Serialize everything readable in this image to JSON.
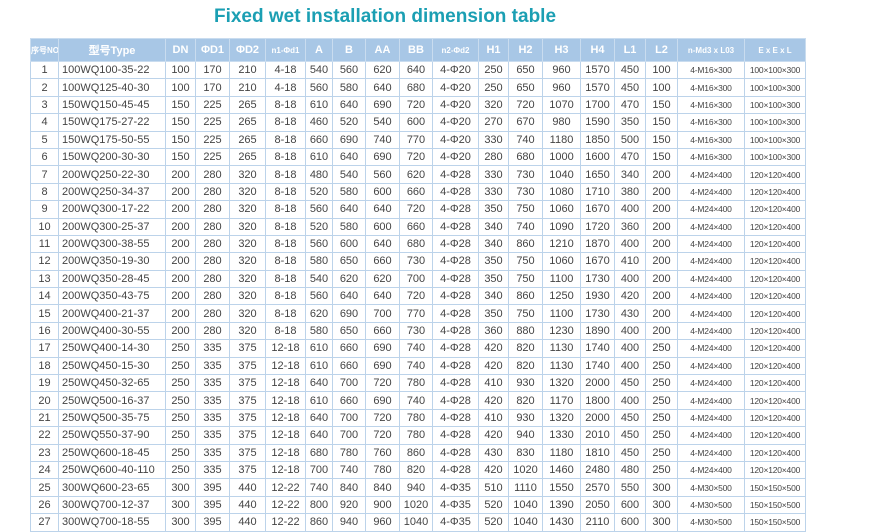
{
  "title": "Fixed wet installation dimension table",
  "table": {
    "header": [
      "序号NO",
      "型号Type",
      "DN",
      "ΦD1",
      "ΦD2",
      "n1-Φd1",
      "A",
      "B",
      "AA",
      "BB",
      "n2-Φd2",
      "H1",
      "H2",
      "H3",
      "H4",
      "L1",
      "L2",
      "n-Md3 x L03",
      "E x E x L"
    ],
    "rows": [
      [
        "1",
        "100WQ100-35-22",
        "100",
        "170",
        "210",
        "4-18",
        "540",
        "560",
        "620",
        "640",
        "4-Φ20",
        "250",
        "650",
        "960",
        "1570",
        "450",
        "100",
        "4-M16×300",
        "100×100×300"
      ],
      [
        "2",
        "100WQ125-40-30",
        "100",
        "170",
        "210",
        "4-18",
        "560",
        "580",
        "640",
        "680",
        "4-Φ20",
        "250",
        "650",
        "960",
        "1570",
        "450",
        "100",
        "4-M16×300",
        "100×100×300"
      ],
      [
        "3",
        "150WQ150-45-45",
        "150",
        "225",
        "265",
        "8-18",
        "610",
        "640",
        "690",
        "720",
        "4-Φ20",
        "320",
        "720",
        "1070",
        "1700",
        "470",
        "150",
        "4-M16×300",
        "100×100×300"
      ],
      [
        "4",
        "150WQ175-27-22",
        "150",
        "225",
        "265",
        "8-18",
        "460",
        "520",
        "540",
        "600",
        "4-Φ20",
        "270",
        "670",
        "980",
        "1590",
        "350",
        "150",
        "4-M16×300",
        "100×100×300"
      ],
      [
        "5",
        "150WQ175-50-55",
        "150",
        "225",
        "265",
        "8-18",
        "660",
        "690",
        "740",
        "770",
        "4-Φ20",
        "330",
        "740",
        "1180",
        "1850",
        "500",
        "150",
        "4-M16×300",
        "100×100×300"
      ],
      [
        "6",
        "150WQ200-30-30",
        "150",
        "225",
        "265",
        "8-18",
        "610",
        "640",
        "690",
        "720",
        "4-Φ20",
        "280",
        "680",
        "1000",
        "1600",
        "470",
        "150",
        "4-M16×300",
        "100×100×300"
      ],
      [
        "7",
        "200WQ250-22-30",
        "200",
        "280",
        "320",
        "8-18",
        "480",
        "540",
        "560",
        "620",
        "4-Φ28",
        "330",
        "730",
        "1040",
        "1650",
        "340",
        "200",
        "4-M24×400",
        "120×120×400"
      ],
      [
        "8",
        "200WQ250-34-37",
        "200",
        "280",
        "320",
        "8-18",
        "520",
        "580",
        "600",
        "660",
        "4-Φ28",
        "330",
        "730",
        "1080",
        "1710",
        "380",
        "200",
        "4-M24×400",
        "120×120×400"
      ],
      [
        "9",
        "200WQ300-17-22",
        "200",
        "280",
        "320",
        "8-18",
        "560",
        "640",
        "640",
        "720",
        "4-Φ28",
        "350",
        "750",
        "1060",
        "1670",
        "400",
        "200",
        "4-M24×400",
        "120×120×400"
      ],
      [
        "10",
        "200WQ300-25-37",
        "200",
        "280",
        "320",
        "8-18",
        "520",
        "580",
        "600",
        "660",
        "4-Φ28",
        "340",
        "740",
        "1090",
        "1720",
        "360",
        "200",
        "4-M24×400",
        "120×120×400"
      ],
      [
        "11",
        "200WQ300-38-55",
        "200",
        "280",
        "320",
        "8-18",
        "560",
        "600",
        "640",
        "680",
        "4-Φ28",
        "340",
        "860",
        "1210",
        "1870",
        "400",
        "200",
        "4-M24×400",
        "120×120×400"
      ],
      [
        "12",
        "200WQ350-19-30",
        "200",
        "280",
        "320",
        "8-18",
        "580",
        "650",
        "660",
        "730",
        "4-Φ28",
        "350",
        "750",
        "1060",
        "1670",
        "410",
        "200",
        "4-M24×400",
        "120×120×400"
      ],
      [
        "13",
        "200WQ350-28-45",
        "200",
        "280",
        "320",
        "8-18",
        "540",
        "620",
        "620",
        "700",
        "4-Φ28",
        "350",
        "750",
        "1100",
        "1730",
        "400",
        "200",
        "4-M24×400",
        "120×120×400"
      ],
      [
        "14",
        "200WQ350-43-75",
        "200",
        "280",
        "320",
        "8-18",
        "560",
        "640",
        "640",
        "720",
        "4-Φ28",
        "340",
        "860",
        "1250",
        "1930",
        "420",
        "200",
        "4-M24×400",
        "120×120×400"
      ],
      [
        "15",
        "200WQ400-21-37",
        "200",
        "280",
        "320",
        "8-18",
        "620",
        "690",
        "700",
        "770",
        "4-Φ28",
        "350",
        "750",
        "1100",
        "1730",
        "430",
        "200",
        "4-M24×400",
        "120×120×400"
      ],
      [
        "16",
        "200WQ400-30-55",
        "200",
        "280",
        "320",
        "8-18",
        "580",
        "650",
        "660",
        "730",
        "4-Φ28",
        "360",
        "880",
        "1230",
        "1890",
        "400",
        "200",
        "4-M24×400",
        "120×120×400"
      ],
      [
        "17",
        "250WQ400-14-30",
        "250",
        "335",
        "375",
        "12-18",
        "610",
        "660",
        "690",
        "740",
        "4-Φ28",
        "420",
        "820",
        "1130",
        "1740",
        "400",
        "250",
        "4-M24×400",
        "120×120×400"
      ],
      [
        "18",
        "250WQ450-15-30",
        "250",
        "335",
        "375",
        "12-18",
        "610",
        "660",
        "690",
        "740",
        "4-Φ28",
        "420",
        "820",
        "1130",
        "1740",
        "400",
        "250",
        "4-M24×400",
        "120×120×400"
      ],
      [
        "19",
        "250WQ450-32-65",
        "250",
        "335",
        "375",
        "12-18",
        "640",
        "700",
        "720",
        "780",
        "4-Φ28",
        "410",
        "930",
        "1320",
        "2000",
        "450",
        "250",
        "4-M24×400",
        "120×120×400"
      ],
      [
        "20",
        "250WQ500-16-37",
        "250",
        "335",
        "375",
        "12-18",
        "610",
        "660",
        "690",
        "740",
        "4-Φ28",
        "420",
        "820",
        "1170",
        "1800",
        "400",
        "250",
        "4-M24×400",
        "120×120×400"
      ],
      [
        "21",
        "250WQ500-35-75",
        "250",
        "335",
        "375",
        "12-18",
        "640",
        "700",
        "720",
        "780",
        "4-Φ28",
        "410",
        "930",
        "1320",
        "2000",
        "450",
        "250",
        "4-M24×400",
        "120×120×400"
      ],
      [
        "22",
        "250WQ550-37-90",
        "250",
        "335",
        "375",
        "12-18",
        "640",
        "700",
        "720",
        "780",
        "4-Φ28",
        "420",
        "940",
        "1330",
        "2010",
        "450",
        "250",
        "4-M24×400",
        "120×120×400"
      ],
      [
        "23",
        "250WQ600-18-45",
        "250",
        "335",
        "375",
        "12-18",
        "680",
        "780",
        "760",
        "860",
        "4-Φ28",
        "430",
        "830",
        "1180",
        "1810",
        "450",
        "250",
        "4-M24×400",
        "120×120×400"
      ],
      [
        "24",
        "250WQ600-40-110",
        "250",
        "335",
        "375",
        "12-18",
        "700",
        "740",
        "780",
        "820",
        "4-Φ28",
        "420",
        "1020",
        "1460",
        "2480",
        "480",
        "250",
        "4-M24×400",
        "120×120×400"
      ],
      [
        "25",
        "300WQ600-23-65",
        "300",
        "395",
        "440",
        "12-22",
        "740",
        "840",
        "840",
        "940",
        "4-Φ35",
        "510",
        "1110",
        "1550",
        "2570",
        "550",
        "300",
        "4-M30×500",
        "150×150×500"
      ],
      [
        "26",
        "300WQ700-12-37",
        "300",
        "395",
        "440",
        "12-22",
        "800",
        "920",
        "900",
        "1020",
        "4-Φ35",
        "520",
        "1040",
        "1390",
        "2050",
        "600",
        "300",
        "4-M30×500",
        "150×150×500"
      ],
      [
        "27",
        "300WQ700-18-55",
        "300",
        "395",
        "440",
        "12-22",
        "860",
        "940",
        "960",
        "1040",
        "4-Φ35",
        "520",
        "1040",
        "1430",
        "2110",
        "600",
        "300",
        "4-M30×500",
        "150×150×500"
      ]
    ]
  }
}
